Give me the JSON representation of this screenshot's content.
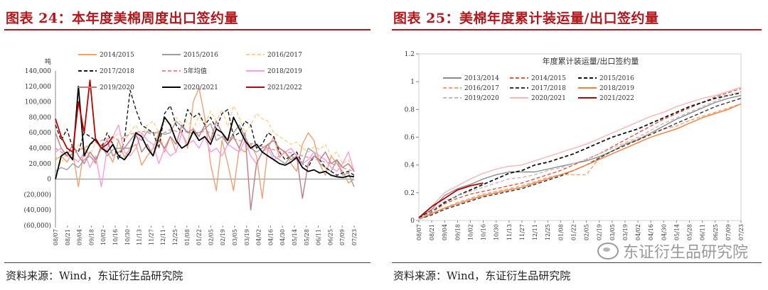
{
  "left": {
    "title": "图表 24：本年度美棉周度出口签约量",
    "source": "资料来源：Wind，东证衍生品研究院"
  },
  "right": {
    "title": "图表 25：美棉年度累计装运量/出口签约量",
    "source": "资料来源：Wind，东证衍生品研究院"
  },
  "watermark": {
    "text": "东证衍生品研究院"
  },
  "colors": {
    "title_red": "#b3171c",
    "s1415": "#f0a172",
    "s1516": "#9e9e9e",
    "s1617": "#ffd08a",
    "s1718": "#1a1a1a",
    "s5yr": "#f28a8a",
    "s1819": "#ff9be0",
    "s1920": "#c27b85",
    "s2021": "#000000",
    "s2122": "#c00000",
    "r1314": "#8c8c8c",
    "r1415": "#e8543f",
    "r1516": "#111111",
    "r1617": "#f4a16c",
    "r1718": "#333333",
    "r1819": "#f07f3c",
    "r1920": "#bdbdbd",
    "r2021": "#f7b6b6",
    "r2122": "#b30000"
  },
  "chart_data": [
    {
      "type": "line",
      "ylabel": "吨",
      "ylim": [
        -60000,
        140000
      ],
      "y_ticks": [
        -60000,
        -40000,
        -20000,
        0,
        20000,
        40000,
        60000,
        80000,
        100000,
        120000,
        140000
      ],
      "y_tick_labels": [
        "(60,000)",
        "(40,000)",
        "(20,000)",
        "0",
        "20,000",
        "40,000",
        "60,000",
        "80,000",
        "100,000",
        "120,000",
        "140,000"
      ],
      "x_tick_labels": [
        "08/07",
        "08/21",
        "09/04",
        "09/18",
        "10/02",
        "10/16",
        "10/30",
        "11/13",
        "11/27",
        "12/11",
        "12/25",
        "01/08",
        "01/22",
        "02/05",
        "02/19",
        "03/05",
        "03/19",
        "04/02",
        "04/16",
        "04/30",
        "05/14",
        "05/28",
        "06/11",
        "06/25",
        "07/09",
        "07/23"
      ],
      "legend_position": "top",
      "series": [
        {
          "name": "2014/2015",
          "style": "solid",
          "color_key": "s1415",
          "values": [
            25000,
            30000,
            22000,
            35000,
            -10000,
            40000,
            30000,
            20000,
            45000,
            35000,
            22000,
            50000,
            28000,
            40000,
            45000,
            18000,
            30000,
            40000,
            60000,
            35000,
            55000,
            35000,
            60000,
            40000,
            100000,
            118000,
            80000,
            20000,
            -15000,
            50000,
            20000,
            -15000,
            40000,
            35000,
            45000,
            30000,
            -25000,
            40000,
            55000,
            28000,
            35000,
            20000,
            10000,
            45000,
            60000,
            50000,
            20000,
            5000,
            30000,
            20000,
            10000,
            -5000,
            0
          ]
        },
        {
          "name": "2015/2016",
          "style": "solid",
          "color_key": "s1516",
          "values": [
            10000,
            15000,
            12000,
            20000,
            15000,
            25000,
            30000,
            22000,
            45000,
            30000,
            38000,
            40000,
            40000,
            40000,
            55000,
            50000,
            62000,
            60000,
            60000,
            58000,
            60000,
            75000,
            68000,
            60000,
            60000,
            60000,
            65000,
            72000,
            50000,
            55000,
            45000,
            60000,
            70000,
            55000,
            40000,
            35000,
            40000,
            45000,
            30000,
            25000,
            20000,
            30000,
            25000,
            20000,
            40000,
            35000,
            20000,
            15000,
            10000,
            25000,
            5000,
            8000,
            -10000
          ]
        },
        {
          "name": "2016/2017",
          "style": "dashed",
          "color_key": "s1617",
          "values": [
            30000,
            20000,
            35000,
            25000,
            45000,
            38000,
            30000,
            48000,
            40000,
            50000,
            52000,
            60000,
            50000,
            60000,
            70000,
            55000,
            70000,
            75000,
            60000,
            75000,
            70000,
            80000,
            72000,
            75000,
            65000,
            82000,
            70000,
            88000,
            75000,
            90000,
            68000,
            95000,
            80000,
            60000,
            70000,
            85000,
            78000,
            75000,
            60000,
            55000,
            50000,
            45000,
            48000,
            40000,
            35000,
            42000,
            38000,
            45000,
            30000,
            35000,
            20000,
            25000,
            10000
          ]
        },
        {
          "name": "2017/2018",
          "style": "dashed",
          "color_key": "s1718",
          "values": [
            70000,
            50000,
            65000,
            40000,
            35000,
            60000,
            55000,
            50000,
            40000,
            60000,
            45000,
            25000,
            50000,
            115000,
            90000,
            70000,
            65000,
            60000,
            40000,
            85000,
            95000,
            70000,
            60000,
            90000,
            80000,
            85000,
            70000,
            80000,
            65000,
            85000,
            90000,
            55000,
            60000,
            75000,
            70000,
            40000,
            45000,
            60000,
            55000,
            35000,
            25000,
            30000,
            35000,
            20000,
            15000,
            30000,
            25000,
            15000,
            10000,
            5000,
            8000,
            10000,
            5000
          ]
        },
        {
          "name": "5年均值",
          "style": "dashed",
          "color_key": "s5yr",
          "values": [
            40000,
            35000,
            30000,
            32000,
            38000,
            40000,
            45000,
            48000,
            50000,
            52000,
            55000,
            50000,
            55000,
            58000,
            60000,
            62000,
            60000,
            58000,
            62000,
            60000,
            64000,
            62000,
            60000,
            62000,
            58000,
            60000,
            62000,
            60000,
            58000,
            55000,
            55000,
            52000,
            50000,
            48000,
            46000,
            45000,
            42000,
            40000,
            38000,
            36000,
            35000,
            34000,
            32000,
            30000,
            28000,
            26000,
            24000,
            22000,
            20000,
            18000,
            15000,
            12000,
            10000
          ]
        },
        {
          "name": "2018/2019",
          "style": "solid",
          "color_key": "s1819",
          "values": [
            35000,
            40000,
            30000,
            28000,
            22000,
            35000,
            15000,
            30000,
            -10000,
            40000,
            55000,
            70000,
            35000,
            30000,
            40000,
            60000,
            50000,
            45000,
            20000,
            40000,
            30000,
            35000,
            60000,
            45000,
            50000,
            40000,
            55000,
            35000,
            40000,
            30000,
            45000,
            40000,
            35000,
            50000,
            30000,
            20000,
            35000,
            40000,
            25000,
            30000,
            35000,
            40000,
            30000,
            20000,
            25000,
            35000,
            30000,
            25000,
            15000,
            10000,
            20000,
            35000,
            10000
          ]
        },
        {
          "name": "2019/2020",
          "style": "solid",
          "color_key": "s1920",
          "values": [
            60000,
            40000,
            30000,
            45000,
            30000,
            20000,
            35000,
            25000,
            40000,
            50000,
            30000,
            35000,
            40000,
            50000,
            60000,
            35000,
            45000,
            30000,
            50000,
            40000,
            55000,
            45000,
            70000,
            60000,
            65000,
            55000,
            70000,
            50000,
            75000,
            60000,
            45000,
            55000,
            40000,
            60000,
            -40000,
            20000,
            35000,
            45000,
            50000,
            40000,
            35000,
            25000,
            30000,
            -25000,
            20000,
            30000,
            25000,
            35000,
            20000,
            25000,
            15000,
            20000,
            10000
          ]
        },
        {
          "name": "2020/2021",
          "style": "solid",
          "color_key": "s2021",
          "values": [
            0,
            30000,
            35000,
            25000,
            120000,
            30000,
            45000,
            52000,
            40000,
            35000,
            45000,
            30000,
            25000,
            35000,
            60000,
            55000,
            40000,
            30000,
            55000,
            80000,
            70000,
            50000,
            40000,
            45000,
            62000,
            50000,
            55000,
            45000,
            65000,
            60000,
            50000,
            80000,
            65000,
            50000,
            40000,
            45000,
            35000,
            30000,
            25000,
            20000,
            18000,
            22000,
            28000,
            15000,
            10000,
            12000,
            8000,
            10000,
            5000,
            3000,
            2000,
            4000,
            3000
          ]
        },
        {
          "name": "2021/2022",
          "style": "solid",
          "color_key": "s2122",
          "values": [
            78000,
            55000,
            40000,
            35000,
            100000,
            60000,
            128000,
            50000,
            40000,
            45000,
            55000
          ]
        }
      ]
    },
    {
      "type": "line",
      "title": "年度累计装运量/出口签约量",
      "ylim": [
        0,
        1.2
      ],
      "y_ticks": [
        0,
        0.2,
        0.4,
        0.6,
        0.8,
        1,
        1.2
      ],
      "y_tick_labels": [
        "0",
        "0.2",
        "0.4",
        "0.6",
        "0.8",
        "1",
        "1.2"
      ],
      "x_tick_labels": [
        "08/07",
        "08/21",
        "09/04",
        "09/18",
        "10/02",
        "10/16",
        "10/30",
        "11/13",
        "11/27",
        "12/11",
        "12/25",
        "01/08",
        "01/22",
        "02/05",
        "02/19",
        "03/05",
        "03/19",
        "04/02",
        "04/16",
        "04/30",
        "05/14",
        "05/28",
        "06/11",
        "06/25",
        "07/09",
        "07/23"
      ],
      "legend_position": "top",
      "series": [
        {
          "name": "2013/2014",
          "style": "solid",
          "color_key": "r1314",
          "values": [
            0.02,
            0.08,
            0.18,
            0.23,
            0.26,
            0.3,
            0.33,
            0.35,
            0.35,
            0.35,
            0.37,
            0.39,
            0.41,
            0.43,
            0.46,
            0.5,
            0.55,
            0.58,
            0.63,
            0.68,
            0.73,
            0.77,
            0.81,
            0.85,
            0.88,
            0.9
          ]
        },
        {
          "name": "2014/2015",
          "style": "dashed",
          "color_key": "r1415",
          "values": [
            0.02,
            0.06,
            0.12,
            0.16,
            0.19,
            0.21,
            0.23,
            0.25,
            0.27,
            0.3,
            0.33,
            0.36,
            0.4,
            0.44,
            0.48,
            0.53,
            0.58,
            0.63,
            0.68,
            0.73,
            0.77,
            0.81,
            0.85,
            0.89,
            0.92,
            0.95
          ]
        },
        {
          "name": "2015/2016",
          "style": "dashed",
          "color_key": "r1516",
          "values": [
            0.02,
            0.07,
            0.13,
            0.18,
            0.22,
            0.26,
            0.3,
            0.34,
            0.36,
            0.4,
            0.42,
            0.45,
            0.48,
            0.52,
            0.56,
            0.6,
            0.63,
            0.66,
            0.7,
            0.74,
            0.78,
            0.82,
            0.85,
            0.88,
            0.9,
            0.92
          ]
        },
        {
          "name": "2016/2017",
          "style": "dashed",
          "color_key": "r1617",
          "values": [
            0.01,
            0.05,
            0.09,
            0.13,
            0.16,
            0.19,
            0.21,
            0.23,
            0.25,
            0.28,
            0.31,
            0.33,
            0.33,
            0.33,
            0.45,
            0.5,
            0.55,
            0.59,
            0.63,
            0.66,
            0.68,
            0.72,
            0.75,
            0.78,
            0.81,
            0.84
          ]
        },
        {
          "name": "2017/2018",
          "style": "dashed",
          "color_key": "r1718",
          "values": [
            0.01,
            0.04,
            0.08,
            0.11,
            0.14,
            0.17,
            0.19,
            0.21,
            0.23,
            0.26,
            0.29,
            0.32,
            0.36,
            0.4,
            0.45,
            0.5,
            0.54,
            0.58,
            0.62,
            0.66,
            0.7,
            0.74,
            0.78,
            0.82,
            0.85,
            0.88
          ]
        },
        {
          "name": "2018/2019",
          "style": "solid",
          "color_key": "r1819",
          "values": [
            0.01,
            0.05,
            0.09,
            0.12,
            0.15,
            0.18,
            0.2,
            0.22,
            0.24,
            0.27,
            0.3,
            0.33,
            0.36,
            0.4,
            0.44,
            0.48,
            0.52,
            0.56,
            0.6,
            0.63,
            0.66,
            0.7,
            0.74,
            0.77,
            0.8,
            0.84
          ]
        },
        {
          "name": "2019/2020",
          "style": "dashed",
          "color_key": "r1920",
          "values": [
            0.01,
            0.07,
            0.14,
            0.18,
            0.21,
            0.24,
            0.27,
            0.3,
            0.31,
            0.33,
            0.36,
            0.38,
            0.41,
            0.44,
            0.48,
            0.52,
            0.56,
            0.6,
            0.65,
            0.7,
            0.74,
            0.78,
            0.82,
            0.86,
            0.9,
            0.93
          ]
        },
        {
          "name": "2020/2021",
          "style": "solid",
          "color_key": "r2021",
          "values": [
            0.02,
            0.1,
            0.2,
            0.25,
            0.3,
            0.34,
            0.37,
            0.39,
            0.4,
            0.43,
            0.46,
            0.49,
            0.52,
            0.55,
            0.59,
            0.63,
            0.67,
            0.71,
            0.75,
            0.78,
            0.82,
            0.85,
            0.88,
            0.9,
            0.93,
            0.96
          ]
        },
        {
          "name": "2021/2022",
          "style": "solid",
          "color_key": "r2122",
          "values": [
            0.02,
            0.1,
            0.16,
            0.22,
            0.25,
            0.27
          ]
        }
      ]
    }
  ]
}
